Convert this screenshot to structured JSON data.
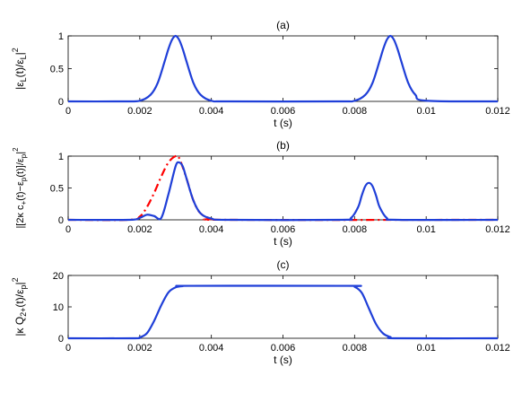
{
  "chart_data": [
    {
      "type": "line",
      "panel": "(a)",
      "title": "(a)",
      "xlabel": "t (s)",
      "ylabel": "|ε_L(t)/ε_L|^2",
      "xlim": [
        0,
        0.012
      ],
      "ylim": [
        0,
        1
      ],
      "xticks": [
        "0",
        "0.002",
        "0.004",
        "0.006",
        "0.008",
        "0.01",
        "0.012"
      ],
      "yticks": [
        "0",
        "0.5",
        "1"
      ],
      "grid": false,
      "series": [
        {
          "color": "#1f3fd8",
          "style": "solid",
          "x": [
            0,
            0.0015,
            0.002,
            0.0023,
            0.0025,
            0.0027,
            0.0028,
            0.0029,
            0.003,
            0.0031,
            0.0032,
            0.0033,
            0.0035,
            0.0037,
            0.004,
            0.0045,
            0.0075,
            0.008,
            0.0083,
            0.0085,
            0.0087,
            0.0088,
            0.0089,
            0.009,
            0.0091,
            0.0092,
            0.0093,
            0.0095,
            0.0097,
            0.01,
            0.012
          ],
          "y": [
            0,
            0,
            0.01,
            0.1,
            0.28,
            0.62,
            0.8,
            0.94,
            1.0,
            0.94,
            0.8,
            0.62,
            0.28,
            0.1,
            0.01,
            0,
            0,
            0.01,
            0.1,
            0.28,
            0.62,
            0.8,
            0.94,
            1.0,
            0.94,
            0.8,
            0.62,
            0.28,
            0.1,
            0.01,
            0
          ]
        }
      ]
    },
    {
      "type": "line",
      "panel": "(b)",
      "title": "(b)",
      "xlabel": "t (s)",
      "ylabel": "|[2κ c_+(t)−ε_p(t)]/ε_p|^2",
      "xlim": [
        0,
        0.012
      ],
      "ylim": [
        0,
        1
      ],
      "xticks": [
        "0",
        "0.002",
        "0.004",
        "0.006",
        "0.008",
        "0.01",
        "0.012"
      ],
      "yticks": [
        "0",
        "0.5",
        "1"
      ],
      "grid": false,
      "series": [
        {
          "color": "#ff0000",
          "style": "dashdot",
          "x": [
            0,
            0.0017,
            0.002,
            0.0022,
            0.0024,
            0.0026,
            0.0028,
            0.003,
            0.0031,
            0.0033,
            0.0035,
            0.0037,
            0.004,
            0.0045,
            0.012
          ],
          "y": [
            0,
            0,
            0.05,
            0.2,
            0.42,
            0.68,
            0.9,
            1.0,
            0.97,
            0.66,
            0.3,
            0.1,
            0.02,
            0,
            0
          ]
        },
        {
          "color": "#1f3fd8",
          "style": "solid",
          "x": [
            0,
            0.0017,
            0.002,
            0.0022,
            0.0024,
            0.0026,
            0.0028,
            0.003,
            0.0031,
            0.0032,
            0.0033,
            0.0035,
            0.0037,
            0.004,
            0.0045,
            0.0076,
            0.0079,
            0.0081,
            0.0082,
            0.0083,
            0.0084,
            0.0085,
            0.0086,
            0.0087,
            0.0089,
            0.0092,
            0.012
          ],
          "y": [
            0,
            0,
            0.03,
            0.08,
            0.06,
            0.03,
            0.4,
            0.84,
            0.9,
            0.84,
            0.66,
            0.3,
            0.1,
            0.02,
            0,
            0,
            0.03,
            0.2,
            0.38,
            0.53,
            0.58,
            0.53,
            0.38,
            0.2,
            0.03,
            0,
            0
          ]
        }
      ]
    },
    {
      "type": "line",
      "panel": "(c)",
      "title": "(c)",
      "xlabel": "t (s)",
      "ylabel": "|κ Q_{2+}(t)/ε_p|^2",
      "xlim": [
        0,
        0.012
      ],
      "ylim": [
        0,
        20
      ],
      "xticks": [
        "0",
        "0.002",
        "0.004",
        "0.006",
        "0.008",
        "0.01",
        "0.012"
      ],
      "yticks": [
        "0",
        "10",
        "20"
      ],
      "grid": false,
      "series": [
        {
          "color": "#1f3fd8",
          "style": "solid",
          "x": [
            0,
            0.0018,
            0.002,
            0.0022,
            0.0024,
            0.0026,
            0.0028,
            0.003,
            0.0032,
            0.0034,
            0.0078,
            0.008,
            0.0082,
            0.0084,
            0.0086,
            0.0088,
            0.009,
            0.0092,
            0.012
          ],
          "y": [
            0,
            0,
            0.3,
            1.6,
            5.5,
            10.5,
            14.6,
            16.2,
            16.6,
            16.7,
            16.7,
            16.4,
            14.5,
            9.5,
            4.5,
            1.5,
            0.4,
            0,
            0
          ]
        }
      ]
    }
  ]
}
